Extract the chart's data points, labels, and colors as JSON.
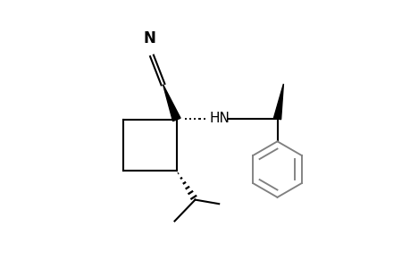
{
  "background_color": "#ffffff",
  "line_color": "#000000",
  "gray_line_color": "#808080",
  "line_width": 1.5,
  "figsize": [
    4.6,
    3.0
  ],
  "dpi": 100,
  "HN_label": "HN",
  "N_label": "N"
}
